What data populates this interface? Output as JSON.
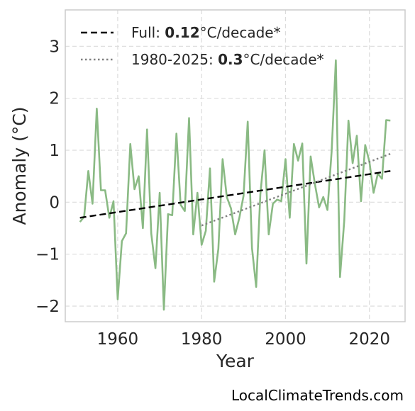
{
  "chart_data": {
    "type": "line",
    "xlabel": "Year",
    "ylabel": "Anomaly (°C)",
    "xlim": [
      1947.5,
      2028.5
    ],
    "ylim": [
      -2.3,
      3.7
    ],
    "xticks": [
      1960,
      1980,
      2000,
      2020
    ],
    "yticks": [
      -2,
      -1,
      0,
      1,
      2,
      3
    ],
    "ytick_labels": [
      "−2",
      "−1",
      "0",
      "1",
      "2",
      "3"
    ],
    "grid": true,
    "legend_position": "top-left",
    "legend": [
      {
        "prefix": "Full: ",
        "value": "0.12",
        "suffix": "°C/decade*",
        "style": "dashed",
        "color": "#000000"
      },
      {
        "prefix": "1980-2025: ",
        "value": "0.3",
        "suffix": "°C/decade*",
        "style": "dotted",
        "color": "#808080"
      }
    ],
    "series": [
      {
        "style": "solid",
        "color": "#8aba84",
        "x": [
          1951,
          1952,
          1953,
          1954,
          1955,
          1956,
          1957,
          1958,
          1959,
          1960,
          1961,
          1962,
          1963,
          1964,
          1965,
          1966,
          1967,
          1968,
          1969,
          1970,
          1971,
          1972,
          1973,
          1974,
          1975,
          1976,
          1977,
          1978,
          1979,
          1980,
          1981,
          1982,
          1983,
          1984,
          1985,
          1986,
          1987,
          1988,
          1989,
          1990,
          1991,
          1992,
          1993,
          1994,
          1995,
          1996,
          1997,
          1998,
          1999,
          2000,
          2001,
          2002,
          2003,
          2004,
          2005,
          2006,
          2007,
          2008,
          2009,
          2010,
          2011,
          2012,
          2013,
          2014,
          2015,
          2016,
          2017,
          2018,
          2019,
          2020,
          2021,
          2022,
          2023,
          2024,
          2025
        ],
        "values": [
          -0.38,
          -0.28,
          0.6,
          -0.03,
          1.8,
          0.23,
          0.23,
          -0.3,
          0.02,
          -1.87,
          -0.75,
          -0.6,
          1.12,
          0.25,
          0.5,
          -0.5,
          1.4,
          -0.6,
          -1.27,
          0.18,
          -2.07,
          -0.23,
          -0.25,
          1.32,
          -0.05,
          -0.17,
          1.62,
          -0.62,
          0.18,
          -0.82,
          -0.55,
          0.65,
          -1.53,
          -0.9,
          0.83,
          0.1,
          -0.12,
          -0.62,
          -0.3,
          0.12,
          1.55,
          -0.88,
          -1.63,
          0.15,
          1.0,
          -0.62,
          -0.03,
          0.05,
          0.02,
          0.83,
          -0.3,
          1.12,
          0.8,
          1.13,
          -1.18,
          0.88,
          0.35,
          -0.1,
          0.1,
          -0.15,
          0.98,
          2.73,
          -1.44,
          -0.35,
          1.57,
          0.75,
          1.28,
          0.02,
          1.1,
          0.78,
          0.18,
          0.55,
          0.45,
          1.58,
          1.57
        ]
      },
      {
        "style": "dashed",
        "color": "#000000",
        "x": [
          1951,
          2025
        ],
        "values": [
          -0.3,
          0.6
        ]
      },
      {
        "style": "dotted",
        "color": "#808080",
        "x": [
          1980,
          2025
        ],
        "values": [
          -0.45,
          0.93
        ]
      }
    ]
  },
  "credit": "LocalClimateTrends.com"
}
